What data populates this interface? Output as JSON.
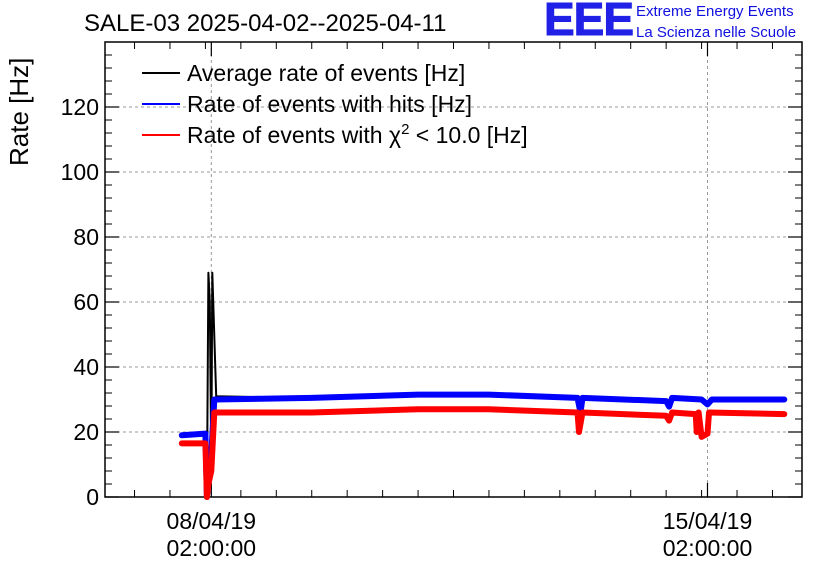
{
  "header": {
    "title": "SALE-03 2025-04-02--2025-04-11"
  },
  "logo": {
    "mark": "EEE",
    "line1": "Extreme Energy Events",
    "line2": "La Scienza nelle Scuole",
    "color": "#2020e6"
  },
  "chart_data": {
    "type": "line",
    "title": "SALE-03 2025-04-02--2025-04-11",
    "xlabel": "",
    "ylabel": "Rate [Hz]",
    "ylim": [
      0,
      140
    ],
    "xlim": [
      "2019-04-06 14:00",
      "2019-04-16 10:00"
    ],
    "y_ticks": [
      0,
      20,
      40,
      60,
      80,
      100,
      120
    ],
    "x_ticks": [
      {
        "date": "08/04/19",
        "time": "02:00:00",
        "x": "2019-04-08 02:00"
      },
      {
        "date": "15/04/19",
        "time": "02:00:00",
        "x": "2019-04-15 02:00"
      }
    ],
    "grid": true,
    "legend_position": "top-left",
    "series": [
      {
        "name": "Average rate of events [Hz]",
        "legend_label_main": "Average rate of events [Hz]",
        "color": "#000000",
        "points": [
          [
            "2019-04-07 16:00",
            19.5
          ],
          [
            "2019-04-08 00:00",
            19.8
          ],
          [
            "2019-04-08 00:30",
            0
          ],
          [
            "2019-04-08 01:00",
            69
          ],
          [
            "2019-04-08 01:30",
            60
          ],
          [
            "2019-04-08 02:00",
            10
          ],
          [
            "2019-04-08 02:20",
            69
          ],
          [
            "2019-04-08 03:40",
            31
          ],
          [
            "2019-04-09 12:00",
            30.5
          ],
          [
            "2019-04-11 00:00",
            31.5
          ],
          [
            "2019-04-12 00:00",
            31.8
          ],
          [
            "2019-04-13 06:00",
            30.8
          ],
          [
            "2019-04-13 07:00",
            25.5
          ],
          [
            "2019-04-13 07:40",
            30.8
          ],
          [
            "2019-04-14 12:00",
            30
          ],
          [
            "2019-04-14 13:00",
            27.5
          ],
          [
            "2019-04-14 14:00",
            30.5
          ],
          [
            "2019-04-15 00:00",
            30.2
          ],
          [
            "2019-04-15 02:00",
            28.5
          ],
          [
            "2019-04-15 03:30",
            30.3
          ],
          [
            "2019-04-16 04:00",
            30
          ]
        ]
      },
      {
        "name": "Rate of events with hits [Hz]",
        "legend_label_main": "Rate of events with hits [Hz]",
        "color": "#0000ff",
        "points": [
          [
            "2019-04-07 16:00",
            19
          ],
          [
            "2019-04-08 00:00",
            19.5
          ],
          [
            "2019-04-08 00:30",
            0
          ],
          [
            "2019-04-08 01:00",
            8
          ],
          [
            "2019-04-08 02:00",
            13
          ],
          [
            "2019-04-08 03:00",
            30
          ],
          [
            "2019-04-09 12:00",
            30.5
          ],
          [
            "2019-04-11 00:00",
            31.5
          ],
          [
            "2019-04-12 00:00",
            31.5
          ],
          [
            "2019-04-13 06:00",
            30.5
          ],
          [
            "2019-04-13 07:00",
            26
          ],
          [
            "2019-04-13 07:40",
            30.5
          ],
          [
            "2019-04-14 12:00",
            29.5
          ],
          [
            "2019-04-14 13:00",
            27.8
          ],
          [
            "2019-04-14 14:00",
            30.5
          ],
          [
            "2019-04-15 00:00",
            30
          ],
          [
            "2019-04-15 02:00",
            28.5
          ],
          [
            "2019-04-15 03:30",
            30
          ],
          [
            "2019-04-16 04:00",
            30
          ]
        ]
      },
      {
        "name": "Rate of events with χ² < 10.0 [Hz]",
        "legend_label_main": "Rate of events with χ",
        "legend_label_sup": "2",
        "legend_label_rest": " < 10.0 [Hz]",
        "color": "#ff0000",
        "points": [
          [
            "2019-04-07 16:00",
            16.5
          ],
          [
            "2019-04-08 00:00",
            16.5
          ],
          [
            "2019-04-08 00:30",
            0
          ],
          [
            "2019-04-08 01:00",
            4
          ],
          [
            "2019-04-08 02:00",
            8
          ],
          [
            "2019-04-08 03:00",
            26
          ],
          [
            "2019-04-09 12:00",
            26
          ],
          [
            "2019-04-11 00:00",
            27
          ],
          [
            "2019-04-12 00:00",
            27
          ],
          [
            "2019-04-13 06:00",
            26
          ],
          [
            "2019-04-13 06:30",
            20
          ],
          [
            "2019-04-13 07:40",
            26
          ],
          [
            "2019-04-14 12:00",
            25
          ],
          [
            "2019-04-14 13:00",
            23.5
          ],
          [
            "2019-04-14 14:00",
            26
          ],
          [
            "2019-04-14 22:00",
            25.5
          ],
          [
            "2019-04-14 22:20",
            20
          ],
          [
            "2019-04-14 23:00",
            26
          ],
          [
            "2019-04-15 00:00",
            18.5
          ],
          [
            "2019-04-15 02:00",
            19.5
          ],
          [
            "2019-04-15 02:30",
            26
          ],
          [
            "2019-04-16 04:00",
            25.5
          ]
        ]
      }
    ]
  }
}
